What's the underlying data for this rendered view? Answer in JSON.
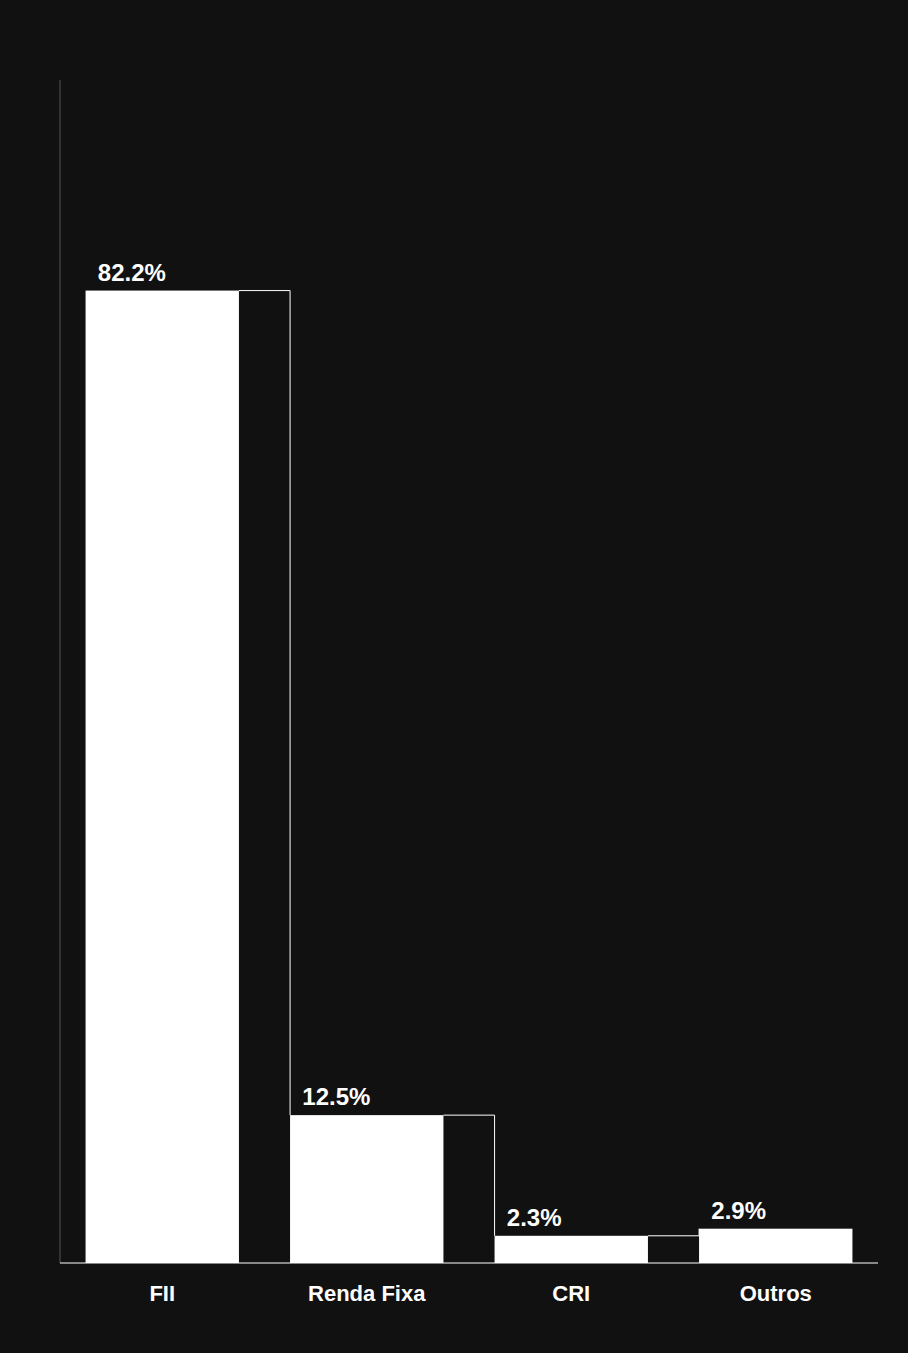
{
  "chart_data": {
    "type": "bar",
    "categories": [
      "FII",
      "Renda Fixa",
      "CRI",
      "Outros"
    ],
    "values": [
      82.2,
      12.5,
      2.3,
      2.9
    ],
    "value_labels": [
      "82.2%",
      "12.5%",
      "2.3%",
      "2.9%"
    ],
    "color": "#ffffff",
    "ylim": [
      0,
      100
    ],
    "grid": false,
    "data_labels": true,
    "tick_labels": "x"
  }
}
